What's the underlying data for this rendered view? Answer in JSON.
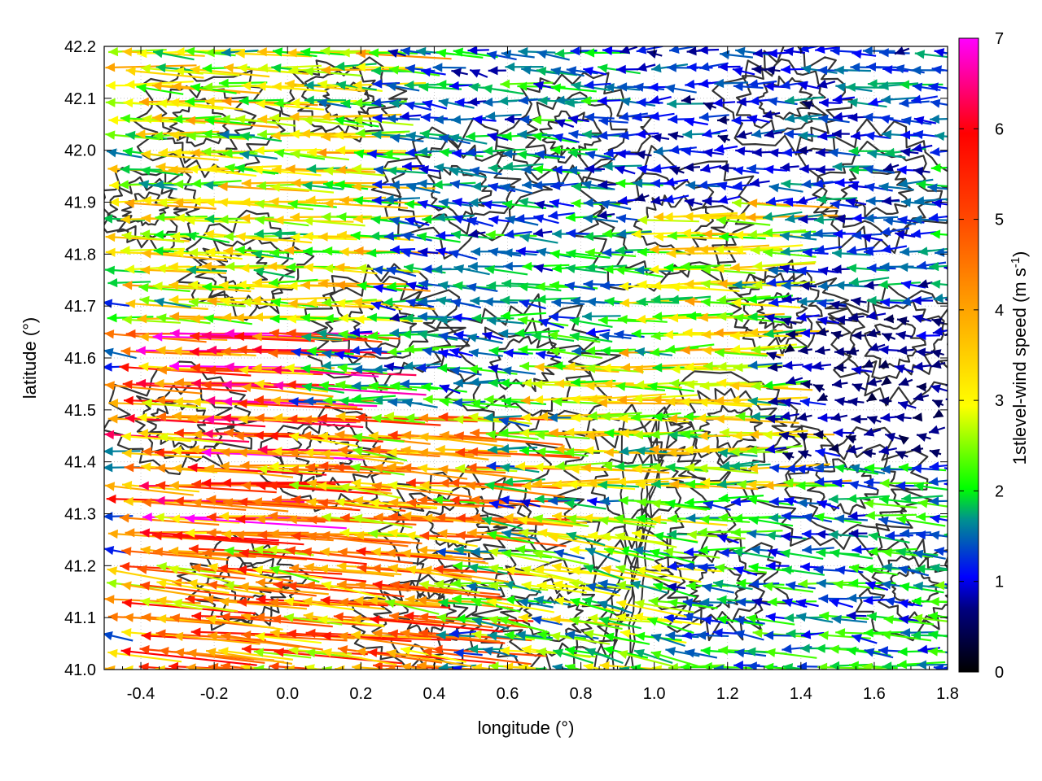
{
  "chart_data": {
    "type": "vector-field",
    "xlabel": "longitude (°)",
    "ylabel": "latitude (°)",
    "colorbar_label": "1stlevel-wind speed (m s",
    "colorbar_label_sup": "-1",
    "colorbar_label_end": ")",
    "xlim": [
      -0.5,
      1.8
    ],
    "ylim": [
      41.0,
      42.2
    ],
    "xticks": [
      -0.4,
      -0.2,
      0.0,
      0.2,
      0.4,
      0.6,
      0.8,
      1.0,
      1.2,
      1.4,
      1.6,
      1.8
    ],
    "xtick_labels": [
      "-0.4",
      "-0.2",
      "0.0",
      "0.2",
      "0.4",
      "0.6",
      "0.8",
      "1.0",
      "1.2",
      "1.4",
      "1.6",
      "1.8"
    ],
    "yticks": [
      41.0,
      41.1,
      41.2,
      41.3,
      41.4,
      41.5,
      41.6,
      41.7,
      41.8,
      41.9,
      42.0,
      42.1,
      42.2
    ],
    "ytick_labels": [
      "41.0",
      "41.1",
      "41.2",
      "41.3",
      "41.4",
      "41.5",
      "41.6",
      "41.7",
      "41.8",
      "41.9",
      "42.0",
      "42.1",
      "42.2"
    ],
    "colorbar_range": [
      0,
      7
    ],
    "colorbar_ticks": [
      "0",
      "1",
      "2",
      "3",
      "4",
      "5",
      "6",
      "7"
    ],
    "colormap": [
      "#000000",
      "#0000ff",
      "#00c040",
      "#00ff00",
      "#ffff00",
      "#ffa500",
      "#ff4500",
      "#ff0000",
      "#ff00ff"
    ],
    "contour_color": "#333333",
    "grid": "dotted",
    "wind_regions": [
      {
        "lon": [
          -0.5,
          0.0
        ],
        "lat": [
          41.25,
          41.65
        ],
        "u": -5.2,
        "v": 0.2
      },
      {
        "lon": [
          -0.5,
          0.4
        ],
        "lat": [
          41.0,
          41.25
        ],
        "u": -4.3,
        "v": 0.4
      },
      {
        "lon": [
          0.0,
          0.5
        ],
        "lat": [
          41.25,
          41.5
        ],
        "u": -4.0,
        "v": 0.3
      },
      {
        "lon": [
          -0.5,
          0.2
        ],
        "lat": [
          41.65,
          42.2
        ],
        "u": -3.0,
        "v": 0.1
      },
      {
        "lon": [
          0.2,
          0.9
        ],
        "lat": [
          41.6,
          42.2
        ],
        "u": -1.6,
        "v": 0.1
      },
      {
        "lon": [
          0.5,
          1.0
        ],
        "lat": [
          41.0,
          41.3
        ],
        "u": -2.6,
        "v": 0.4
      },
      {
        "lon": [
          0.6,
          1.3
        ],
        "lat": [
          41.35,
          41.9
        ],
        "u": -3.0,
        "v": 0.0
      },
      {
        "lon": [
          0.9,
          1.5
        ],
        "lat": [
          41.9,
          42.2
        ],
        "u": -1.2,
        "v": 0.0
      },
      {
        "lon": [
          1.3,
          1.8
        ],
        "lat": [
          41.4,
          41.7
        ],
        "u": -0.7,
        "v": 0.0
      },
      {
        "lon": [
          1.2,
          1.8
        ],
        "lat": [
          41.7,
          42.2
        ],
        "u": -1.4,
        "v": 0.0
      },
      {
        "lon": [
          1.2,
          1.8
        ],
        "lat": [
          41.0,
          41.4
        ],
        "u": -1.7,
        "v": 0.1
      }
    ]
  }
}
